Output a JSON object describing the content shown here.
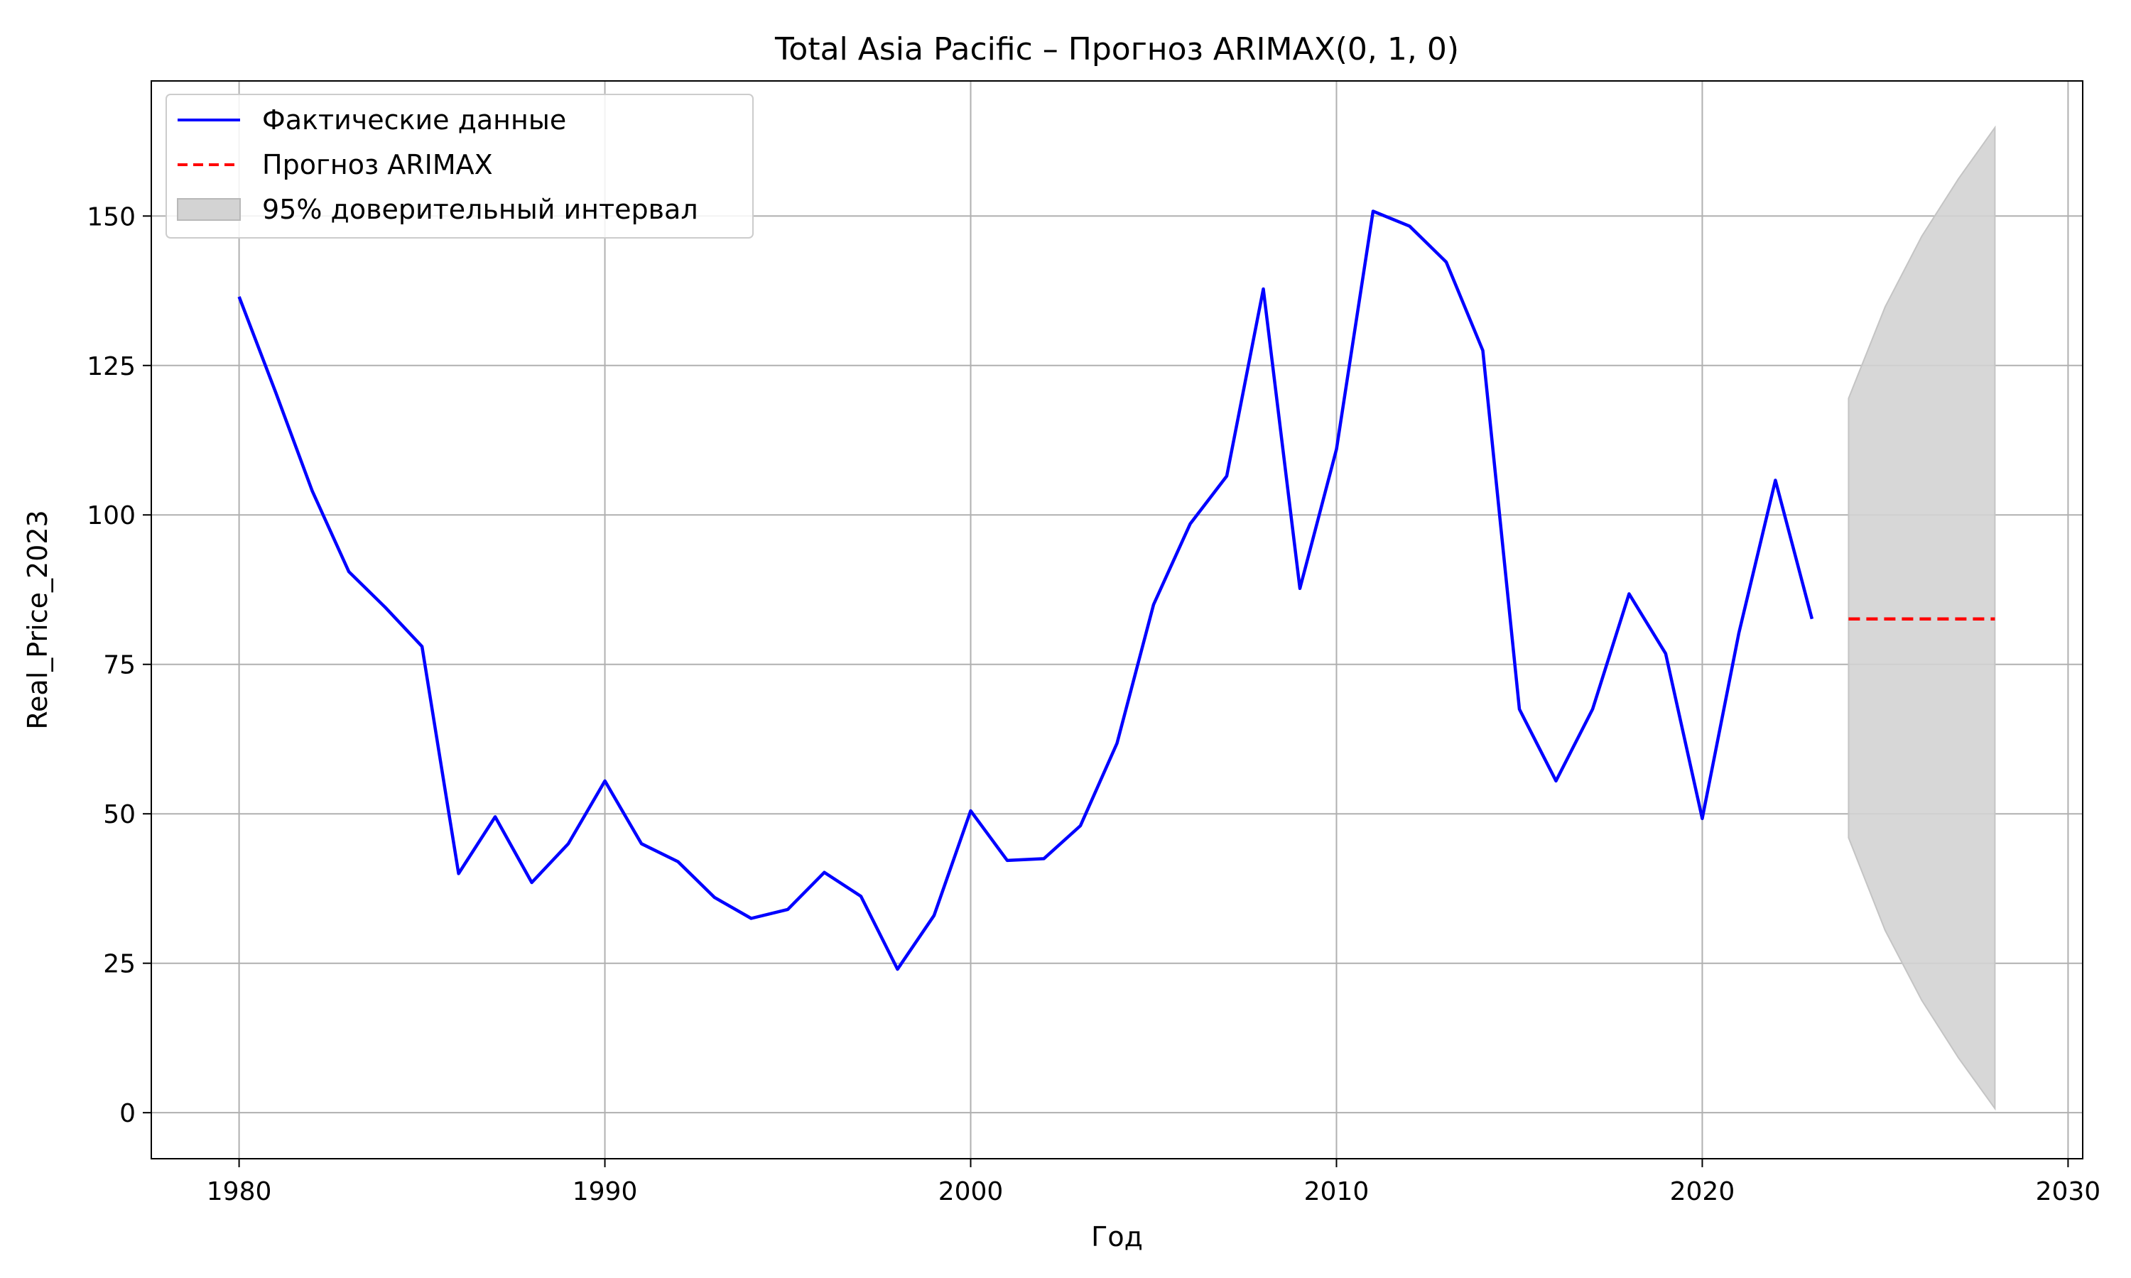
{
  "chart_data": {
    "type": "line",
    "title": "Total Asia Pacific – Прогноз ARIMAX(0, 1, 0)",
    "xlabel": "Год",
    "ylabel": "Real_Price_2023",
    "xlim": [
      1977.6,
      2030.4
    ],
    "ylim": [
      -7.7,
      172.6
    ],
    "xticks": [
      1980,
      1990,
      2000,
      2010,
      2020,
      2030
    ],
    "yticks": [
      0,
      25,
      50,
      75,
      100,
      125,
      150
    ],
    "grid": true,
    "legend_position": "top-left",
    "series": [
      {
        "name": "Фактические данные",
        "style": "solid",
        "color": "#0000ff",
        "x": [
          1980,
          1981,
          1982,
          1983,
          1984,
          1985,
          1986,
          1987,
          1988,
          1989,
          1990,
          1991,
          1992,
          1993,
          1994,
          1995,
          1996,
          1997,
          1998,
          1999,
          2000,
          2001,
          2002,
          2003,
          2004,
          2005,
          2006,
          2007,
          2008,
          2009,
          2010,
          2011,
          2012,
          2013,
          2014,
          2015,
          2016,
          2017,
          2018,
          2019,
          2020,
          2021,
          2022,
          2023
        ],
        "y": [
          136.5,
          120.5,
          104.0,
          90.5,
          84.5,
          78.0,
          40.0,
          49.5,
          38.5,
          45.0,
          55.5,
          45.0,
          42.0,
          36.0,
          32.5,
          34.0,
          40.2,
          36.2,
          24.0,
          33.0,
          50.5,
          42.2,
          42.5,
          48.0,
          61.8,
          85.0,
          98.5,
          106.5,
          137.8,
          87.7,
          111.0,
          150.8,
          148.3,
          142.3,
          127.5,
          67.5,
          55.5,
          67.5,
          86.8,
          76.8,
          49.2,
          80.2,
          105.8,
          82.6
        ]
      },
      {
        "name": "Прогноз ARIMAX",
        "style": "dashed",
        "color": "#ff0000",
        "x": [
          2024,
          2025,
          2026,
          2027,
          2028
        ],
        "y": [
          82.6,
          82.6,
          82.6,
          82.6,
          82.6
        ]
      },
      {
        "name": "95% доверительный интервал",
        "type": "band",
        "color": "#d3d3d3",
        "x": [
          2024,
          2025,
          2026,
          2027,
          2028
        ],
        "lower": [
          46.0,
          30.5,
          18.8,
          9.2,
          0.7
        ],
        "upper": [
          119.5,
          134.8,
          146.6,
          156.2,
          164.8
        ]
      }
    ]
  }
}
